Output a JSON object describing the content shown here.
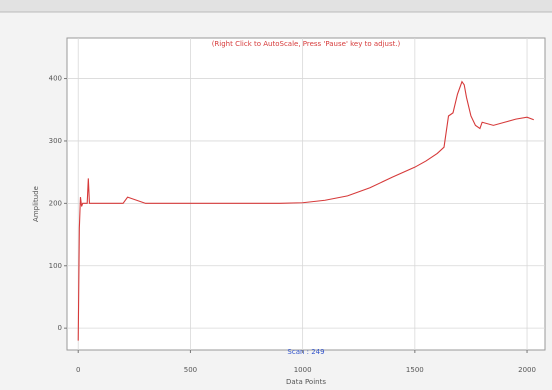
{
  "chart_data": {
    "type": "line",
    "title": "(Right Click to AutoScale, Press 'Pause' key to adjust.)",
    "x_label": "Data Points",
    "y_label": "Amplitude",
    "annotation": "Scan : 249",
    "x": [
      0,
      5,
      10,
      15,
      20,
      40,
      45,
      50,
      100,
      200,
      220,
      300,
      500,
      700,
      900,
      1000,
      1100,
      1200,
      1300,
      1400,
      1500,
      1550,
      1600,
      1630,
      1650,
      1670,
      1690,
      1710,
      1720,
      1730,
      1750,
      1770,
      1790,
      1800,
      1850,
      1900,
      1950,
      2000,
      2030
    ],
    "values": [
      -20,
      160,
      210,
      195,
      200,
      200,
      240,
      200,
      200,
      200,
      210,
      200,
      200,
      200,
      200,
      201,
      205,
      212,
      225,
      242,
      258,
      268,
      280,
      290,
      340,
      345,
      375,
      395,
      390,
      370,
      340,
      325,
      320,
      330,
      325,
      330,
      335,
      338,
      334
    ],
    "color": "#d63a3a",
    "xlim": [
      -50,
      2080
    ],
    "xticks": [
      0,
      500,
      1000,
      1500,
      2000
    ],
    "ylim": [
      -35,
      465
    ],
    "yticks": [
      0,
      100,
      200,
      300,
      400
    ],
    "grid": true
  }
}
